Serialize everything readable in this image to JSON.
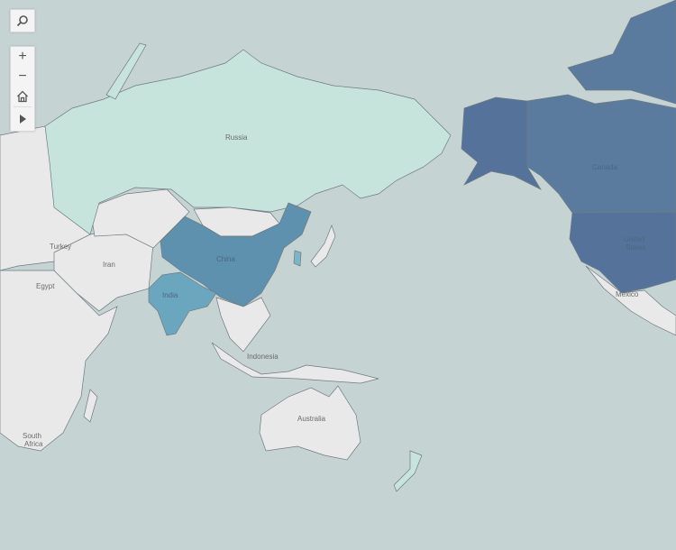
{
  "map": {
    "colors": {
      "ocean": "#c6d3d3",
      "land": "#e9e9e9",
      "russia": "#c7e4dc",
      "china": "#5d91ad",
      "india": "#6aa7bf",
      "canada": "#5b7b9e",
      "united_states": "#55739a",
      "korea": "#7fb3c6",
      "border": "#6f7b80"
    },
    "labels": {
      "russia": "Russia",
      "turkey": "Turkey",
      "iran": "Iran",
      "egypt": "Egypt",
      "china": "China",
      "india": "India",
      "indonesia": "Indonesia",
      "australia": "Australia",
      "south_africa_1": "South",
      "south_africa_2": "Africa",
      "canada": "Canada",
      "us_1": "United",
      "us_2": "States",
      "mexico": "Mexico"
    }
  },
  "toolbar": {
    "search_icon": "search-icon",
    "zoom_in": "+",
    "zoom_out": "−",
    "home_icon": "home-icon",
    "pan_icon": "play-icon"
  }
}
